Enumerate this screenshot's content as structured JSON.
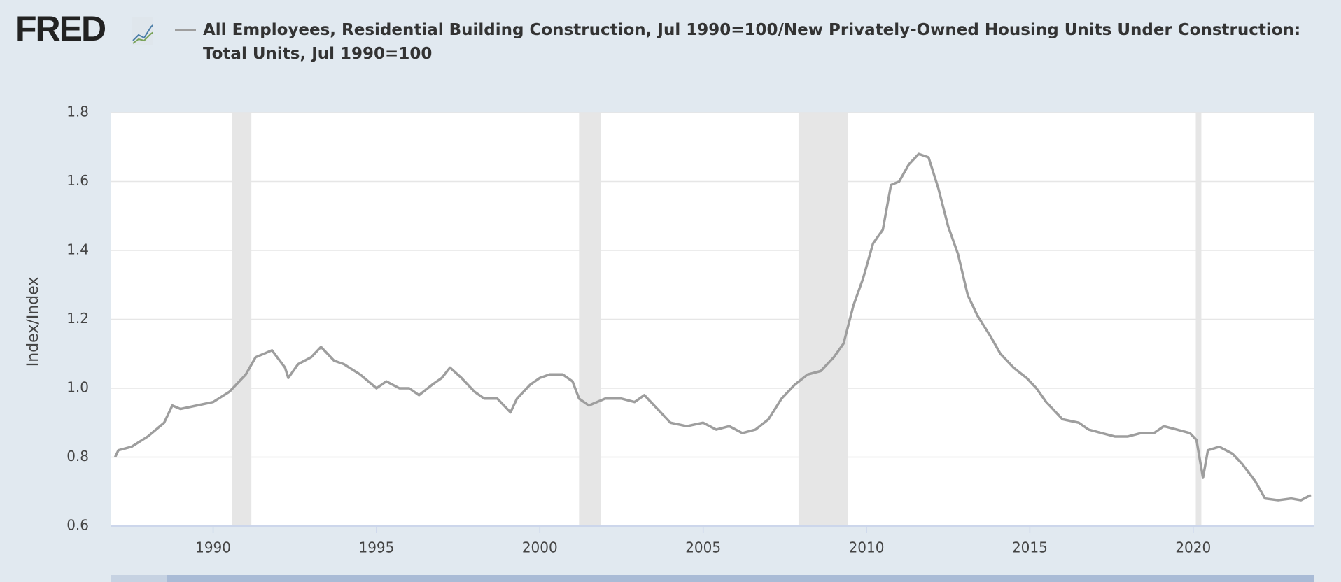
{
  "logo": "FRED",
  "chart_data": {
    "type": "line",
    "y_label": "Index/Index",
    "series": [
      {
        "name": "All Employees, Residential Building Construction, Jul 1990=100/New Privately-Owned Housing Units Under Construction: Total Units, Jul 1990=100",
        "color": "#9e9e9e",
        "x": [
          1987.0,
          1987.1,
          1987.5,
          1988.0,
          1988.5,
          1988.75,
          1989.0,
          1989.5,
          1990.0,
          1990.5,
          1991.0,
          1991.3,
          1991.8,
          1992.2,
          1992.3,
          1992.6,
          1993.0,
          1993.3,
          1993.7,
          1994.0,
          1994.5,
          1995.0,
          1995.3,
          1995.7,
          1996.0,
          1996.3,
          1996.7,
          1997.0,
          1997.25,
          1997.6,
          1998.0,
          1998.3,
          1998.7,
          1999.1,
          1999.3,
          1999.7,
          2000.0,
          2000.3,
          2000.7,
          2001.0,
          2001.2,
          2001.5,
          2002.0,
          2002.5,
          2002.9,
          2003.2,
          2003.6,
          2004.0,
          2004.5,
          2005.0,
          2005.4,
          2005.8,
          2006.2,
          2006.6,
          2007.0,
          2007.4,
          2007.8,
          2008.2,
          2008.6,
          2009.0,
          2009.3,
          2009.6,
          2009.9,
          2010.2,
          2010.5,
          2010.75,
          2011.0,
          2011.3,
          2011.6,
          2011.9,
          2012.2,
          2012.5,
          2012.8,
          2013.1,
          2013.4,
          2013.8,
          2014.1,
          2014.5,
          2014.9,
          2015.2,
          2015.5,
          2016.0,
          2016.5,
          2016.8,
          2017.2,
          2017.6,
          2018.0,
          2018.4,
          2018.8,
          2019.1,
          2019.5,
          2019.9,
          2020.1,
          2020.3,
          2020.45,
          2020.8,
          2021.2,
          2021.5,
          2021.9,
          2022.2,
          2022.6,
          2023.0,
          2023.3,
          2023.6
        ],
        "values": [
          0.8,
          0.82,
          0.83,
          0.86,
          0.9,
          0.95,
          0.94,
          0.95,
          0.96,
          0.99,
          1.04,
          1.09,
          1.11,
          1.06,
          1.03,
          1.07,
          1.09,
          1.12,
          1.08,
          1.07,
          1.04,
          1.0,
          1.02,
          1.0,
          1.0,
          0.98,
          1.01,
          1.03,
          1.06,
          1.03,
          0.99,
          0.97,
          0.97,
          0.93,
          0.97,
          1.01,
          1.03,
          1.04,
          1.04,
          1.02,
          0.97,
          0.95,
          0.97,
          0.97,
          0.96,
          0.98,
          0.94,
          0.9,
          0.89,
          0.9,
          0.88,
          0.89,
          0.87,
          0.88,
          0.91,
          0.97,
          1.01,
          1.04,
          1.05,
          1.09,
          1.13,
          1.24,
          1.32,
          1.42,
          1.46,
          1.59,
          1.6,
          1.65,
          1.68,
          1.67,
          1.58,
          1.47,
          1.39,
          1.27,
          1.21,
          1.15,
          1.1,
          1.06,
          1.03,
          1.0,
          0.96,
          0.91,
          0.9,
          0.88,
          0.87,
          0.86,
          0.86,
          0.87,
          0.87,
          0.89,
          0.88,
          0.87,
          0.85,
          0.74,
          0.82,
          0.83,
          0.81,
          0.78,
          0.73,
          0.68,
          0.675,
          0.68,
          0.675,
          0.69
        ]
      }
    ],
    "recessions": [
      [
        1990.58,
        1991.17
      ],
      [
        2001.2,
        2001.87
      ],
      [
        2007.92,
        2009.42
      ],
      [
        2020.08,
        2020.25
      ]
    ],
    "recession_color": "#e6e6e6",
    "xlim": [
      1986.86,
      2023.69
    ],
    "xticks": [
      1990,
      1995,
      2000,
      2005,
      2010,
      2015,
      2020
    ],
    "ylim": [
      0.6,
      1.8
    ],
    "yticks": [
      0.6,
      0.8,
      {
        "value": 1,
        "label": "1.0"
      },
      1.2,
      1.4,
      1.6,
      1.8
    ],
    "grid": true
  }
}
